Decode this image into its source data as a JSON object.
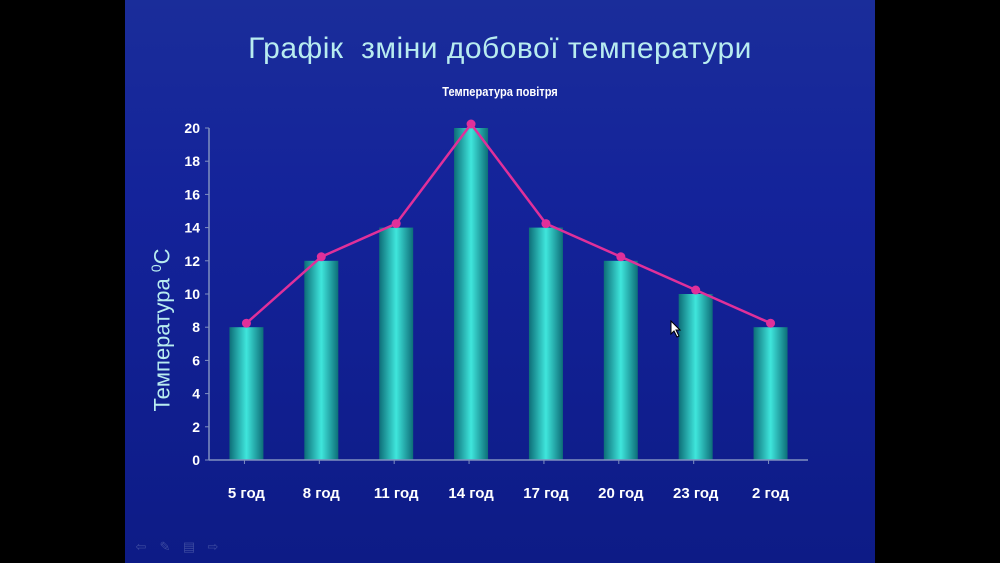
{
  "slide": {
    "title": "Графік  зміни добової температури",
    "ylabel_text": "Температура ",
    "ylabel_sup": "0",
    "ylabel_unit": "С"
  },
  "colors": {
    "bar": "#2fd0c8",
    "bar_dark": "#0d6e78",
    "line": "#e0309a",
    "axis": "#8090c0"
  },
  "nav": {
    "back_icon": "arrow-left-icon",
    "pen_icon": "pen-icon",
    "menu_icon": "menu-icon",
    "next_icon": "arrow-right-icon"
  },
  "chart_data": {
    "type": "bar",
    "title": "Температура повітря",
    "categories": [
      "5 год",
      "8 год",
      "11 год",
      "14 год",
      "17 год",
      "20 год",
      "23 год",
      "2 год"
    ],
    "series": [
      {
        "values": [
          8,
          12,
          14,
          20,
          14,
          12,
          10,
          8
        ]
      }
    ],
    "line_overlay": true,
    "ylabel": "Температура 0С",
    "ylim": [
      0,
      20
    ],
    "yticks": [
      0,
      2,
      4,
      6,
      8,
      10,
      12,
      14,
      16,
      18,
      20
    ],
    "grid": false,
    "legend": "none"
  }
}
